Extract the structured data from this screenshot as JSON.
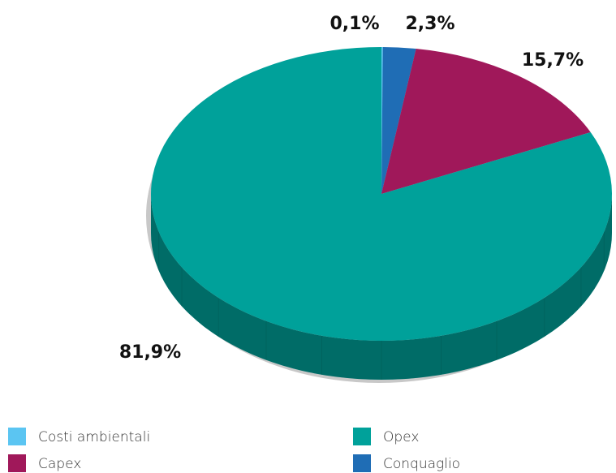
{
  "chart_data": {
    "type": "pie",
    "categories": [
      "Costi ambientali",
      "Conquaglio",
      "Capex",
      "Opex"
    ],
    "values": [
      0.1,
      2.3,
      15.7,
      81.9
    ],
    "value_labels": [
      "0,1%",
      "2,3%",
      "15,7%",
      "81,9%"
    ],
    "colors": [
      "#5bc5f2",
      "#1f6db5",
      "#a0185a",
      "#00a19a"
    ],
    "legend": "bottom"
  }
}
